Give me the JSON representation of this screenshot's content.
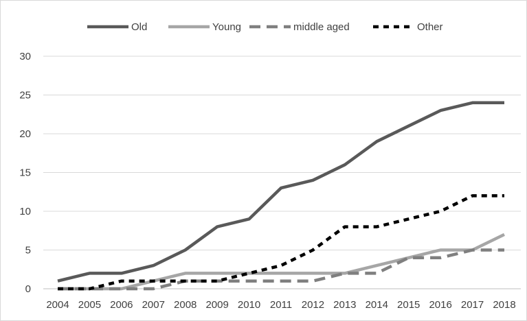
{
  "chart_data": {
    "type": "line",
    "title": "",
    "xlabel": "",
    "ylabel": "",
    "ylim": [
      0,
      30
    ],
    "yticks": [
      0,
      5,
      10,
      15,
      20,
      25,
      30
    ],
    "grid": "horizontal",
    "legend_position": "top",
    "x": [
      "2004",
      "2005",
      "2006",
      "2007",
      "2008",
      "2009",
      "2010",
      "2011",
      "2012",
      "2013",
      "2014",
      "2015",
      "2016",
      "2017",
      "2018"
    ],
    "series": [
      {
        "name": "Old",
        "color": "#595959",
        "dash": "solid",
        "values": [
          1,
          2,
          2,
          3,
          5,
          8,
          9,
          13,
          14,
          16,
          19,
          21,
          23,
          24,
          24
        ]
      },
      {
        "name": "Young",
        "color": "#a6a6a6",
        "dash": "solid",
        "values": [
          0,
          0,
          0,
          1,
          2,
          2,
          2,
          2,
          2,
          2,
          3,
          4,
          5,
          5,
          7
        ]
      },
      {
        "name": "middle aged",
        "color": "#7f7f7f",
        "dash": "long-dash",
        "values": [
          0,
          0,
          0,
          0,
          1,
          1,
          1,
          1,
          1,
          2,
          2,
          4,
          4,
          5,
          5
        ]
      },
      {
        "name": "Other",
        "color": "#000000",
        "dash": "short-dash",
        "values": [
          0,
          0,
          1,
          1,
          1,
          1,
          2,
          3,
          5,
          8,
          8,
          9,
          10,
          12,
          12
        ]
      }
    ]
  }
}
